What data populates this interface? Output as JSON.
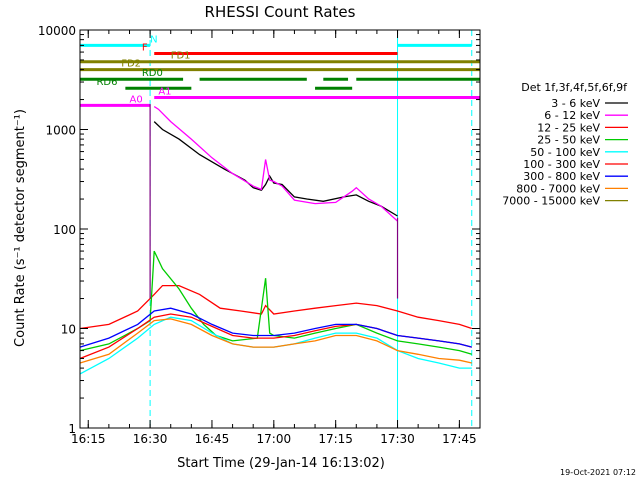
{
  "chart_data": {
    "type": "line",
    "title": "RHESSI Count Rates",
    "xlabel": "Start Time (29-Jan-14 16:13:02)",
    "ylabel": "Count Rate (s⁻¹ detector segment⁻¹)",
    "yscale": "log",
    "ylim": [
      1,
      10000
    ],
    "xlim": [
      "16:13",
      "17:50"
    ],
    "x_ticks": [
      "16:15",
      "16:30",
      "16:45",
      "17:00",
      "17:15",
      "17:30",
      "17:45"
    ],
    "y_ticks": [
      "1",
      "10",
      "100",
      "1000",
      "10000"
    ],
    "grid": false,
    "legend_position": "right",
    "legend_title": "Det 1f,3f,4f,5f,6f,9f",
    "footer_date": "19-Oct-2021 07:12",
    "series": [
      {
        "name": "3 - 6 keV",
        "color": "#000000",
        "x": [
          "16:31",
          "16:33",
          "16:37",
          "16:42",
          "16:48",
          "16:53",
          "16:55",
          "16:57",
          "16:58",
          "16:59",
          "17:00",
          "17:02",
          "17:05",
          "17:08",
          "17:12",
          "17:17",
          "17:20",
          "17:23",
          "17:26",
          "17:30"
        ],
        "y": [
          1200,
          1000,
          800,
          560,
          400,
          310,
          260,
          245,
          280,
          340,
          290,
          280,
          210,
          200,
          190,
          210,
          220,
          190,
          170,
          135
        ]
      },
      {
        "name": "6 - 12 keV",
        "color": "#ff00ff",
        "x": [
          "16:31",
          "16:32",
          "16:35",
          "16:40",
          "16:45",
          "16:50",
          "16:55",
          "16:57",
          "16:58",
          "16:59",
          "17:00",
          "17:02",
          "17:05",
          "17:10",
          "17:15",
          "17:19",
          "17:20",
          "17:23",
          "17:26",
          "17:30"
        ],
        "y": [
          1700,
          1600,
          1200,
          800,
          520,
          360,
          270,
          250,
          500,
          310,
          300,
          270,
          195,
          180,
          185,
          240,
          260,
          200,
          170,
          120
        ]
      },
      {
        "name": "12 - 25 keV",
        "color": "#ff0000",
        "x": [
          "16:13",
          "16:20",
          "16:27",
          "16:31",
          "16:33",
          "16:37",
          "16:42",
          "16:47",
          "16:52",
          "16:57",
          "16:58",
          "17:00",
          "17:05",
          "17:10",
          "17:15",
          "17:20",
          "17:25",
          "17:30",
          "17:35",
          "17:40",
          "17:45",
          "17:48"
        ],
        "y": [
          10,
          11,
          15,
          22,
          27,
          27,
          22,
          16,
          15,
          14,
          17,
          14,
          15,
          16,
          17,
          18,
          17,
          15,
          13,
          12,
          11,
          10
        ]
      },
      {
        "name": "25 - 50 keV",
        "color": "#00cc00",
        "x": [
          "16:13",
          "16:20",
          "16:27",
          "16:30",
          "16:31",
          "16:33",
          "16:37",
          "16:40",
          "16:43",
          "16:46",
          "16:50",
          "16:56",
          "16:58",
          "16:59",
          "17:00",
          "17:05",
          "17:10",
          "17:15",
          "17:20",
          "17:25",
          "17:30",
          "17:35",
          "17:40",
          "17:45",
          "17:48"
        ],
        "y": [
          6,
          7,
          10,
          12,
          60,
          40,
          25,
          16,
          11,
          8.5,
          7.5,
          8,
          32,
          9,
          8.5,
          8,
          9,
          10,
          11,
          9,
          7.5,
          7,
          6.5,
          6,
          5.5
        ]
      },
      {
        "name": "50 - 100 keV",
        "color": "#00ffff",
        "x": [
          "16:13",
          "16:20",
          "16:27",
          "16:31",
          "16:35",
          "16:40",
          "16:45",
          "16:50",
          "16:55",
          "17:00",
          "17:05",
          "17:10",
          "17:15",
          "17:20",
          "17:25",
          "17:30",
          "17:35",
          "17:40",
          "17:45",
          "17:48"
        ],
        "y": [
          3.5,
          5,
          8,
          11,
          13,
          12,
          9,
          7,
          6.5,
          6.5,
          7,
          8,
          9,
          9,
          8,
          6,
          5,
          4.5,
          4,
          4
        ]
      },
      {
        "name": "100 - 300 keV",
        "color": "#ff0000",
        "x": [
          "16:13",
          "16:20",
          "16:27",
          "16:31",
          "16:35",
          "16:40",
          "16:45",
          "16:50",
          "16:55",
          "17:00",
          "17:05",
          "17:10",
          "17:15",
          "17:20",
          "17:25",
          "17:30",
          "17:35",
          "17:40",
          "17:45",
          "17:48"
        ],
        "y": [
          5,
          6.5,
          10,
          13,
          14,
          13,
          10.5,
          8.5,
          8,
          8,
          8.5,
          9.5,
          10.5,
          11,
          10,
          8.5,
          8,
          7.5,
          7,
          6.5
        ]
      },
      {
        "name": "300 - 800 keV",
        "color": "#0000ff",
        "x": [
          "16:13",
          "16:20",
          "16:27",
          "16:31",
          "16:35",
          "16:40",
          "16:45",
          "16:50",
          "16:55",
          "17:00",
          "17:05",
          "17:10",
          "17:15",
          "17:20",
          "17:25",
          "17:30",
          "17:35",
          "17:40",
          "17:45",
          "17:48"
        ],
        "y": [
          6.5,
          8,
          11,
          15,
          16,
          14,
          11,
          9,
          8.5,
          8.5,
          9,
          10,
          11,
          11,
          10,
          8.5,
          8,
          7.5,
          7,
          6.5
        ]
      },
      {
        "name": "800 - 7000 keV",
        "color": "#ff8000",
        "x": [
          "16:13",
          "16:20",
          "16:27",
          "16:31",
          "16:35",
          "16:40",
          "16:45",
          "16:50",
          "16:55",
          "17:00",
          "17:05",
          "17:10",
          "17:15",
          "17:20",
          "17:25",
          "17:30",
          "17:35",
          "17:40",
          "17:45",
          "17:48"
        ],
        "y": [
          4.5,
          5.5,
          9,
          12,
          12.5,
          11,
          8.5,
          7,
          6.5,
          6.5,
          7,
          7.5,
          8.5,
          8.5,
          7.5,
          6,
          5.5,
          5,
          4.8,
          4.5
        ]
      },
      {
        "name": "7000 - 15000 keV",
        "color": "#808000",
        "x": [],
        "y": []
      }
    ],
    "spikes": [
      {
        "x": "16:30",
        "y_from": 20,
        "y_to": 1800
      },
      {
        "x": "17:30",
        "y_from": 20,
        "y_to": 130
      }
    ],
    "vertical_lines": [
      {
        "x": "16:30",
        "style": "dashed",
        "color": "#00ffff"
      },
      {
        "x": "17:30",
        "style": "solid",
        "color": "#00ffff"
      },
      {
        "x": "17:48",
        "style": "dashed",
        "color": "#00ffff"
      }
    ],
    "flag_bars": [
      {
        "label": "N",
        "color": "#00ffff",
        "y": 7000,
        "segments": [
          [
            "16:13",
            "16:30"
          ],
          [
            "17:30",
            "17:48"
          ]
        ],
        "label_at": "16:30"
      },
      {
        "label": "F",
        "color": "#ff0000",
        "y": 5800,
        "segments": [
          [
            "16:31",
            "17:30"
          ]
        ],
        "label_at": "16:28"
      },
      {
        "label": "FD1",
        "color": "#808000",
        "y": 4800,
        "segments": [
          [
            "16:13",
            "17:50"
          ]
        ],
        "label_at": "16:35"
      },
      {
        "label": "FD2",
        "color": "#808000",
        "y": 4000,
        "segments": [
          [
            "16:13",
            "17:50"
          ]
        ],
        "label_at": "16:23"
      },
      {
        "label": "RD0",
        "color": "#008000",
        "y": 3200,
        "segments": [
          [
            "16:13",
            "16:38"
          ],
          [
            "16:42",
            "17:08"
          ],
          [
            "17:12",
            "17:18"
          ],
          [
            "17:20",
            "17:50"
          ]
        ],
        "label_at": "16:28"
      },
      {
        "label": "RD6",
        "color": "#008000",
        "y": 2600,
        "segments": [
          [
            "16:24",
            "16:40"
          ],
          [
            "17:10",
            "17:19"
          ]
        ],
        "label_at": "16:17"
      },
      {
        "label": "A0",
        "color": "#ff00ff",
        "y": 1750,
        "segments": [
          [
            "16:13",
            "16:30"
          ]
        ],
        "label_at": "16:25"
      },
      {
        "label": "A1",
        "color": "#ff00ff",
        "y": 2100,
        "segments": [
          [
            "16:31",
            "17:50"
          ]
        ],
        "label_at": "16:32"
      }
    ]
  }
}
